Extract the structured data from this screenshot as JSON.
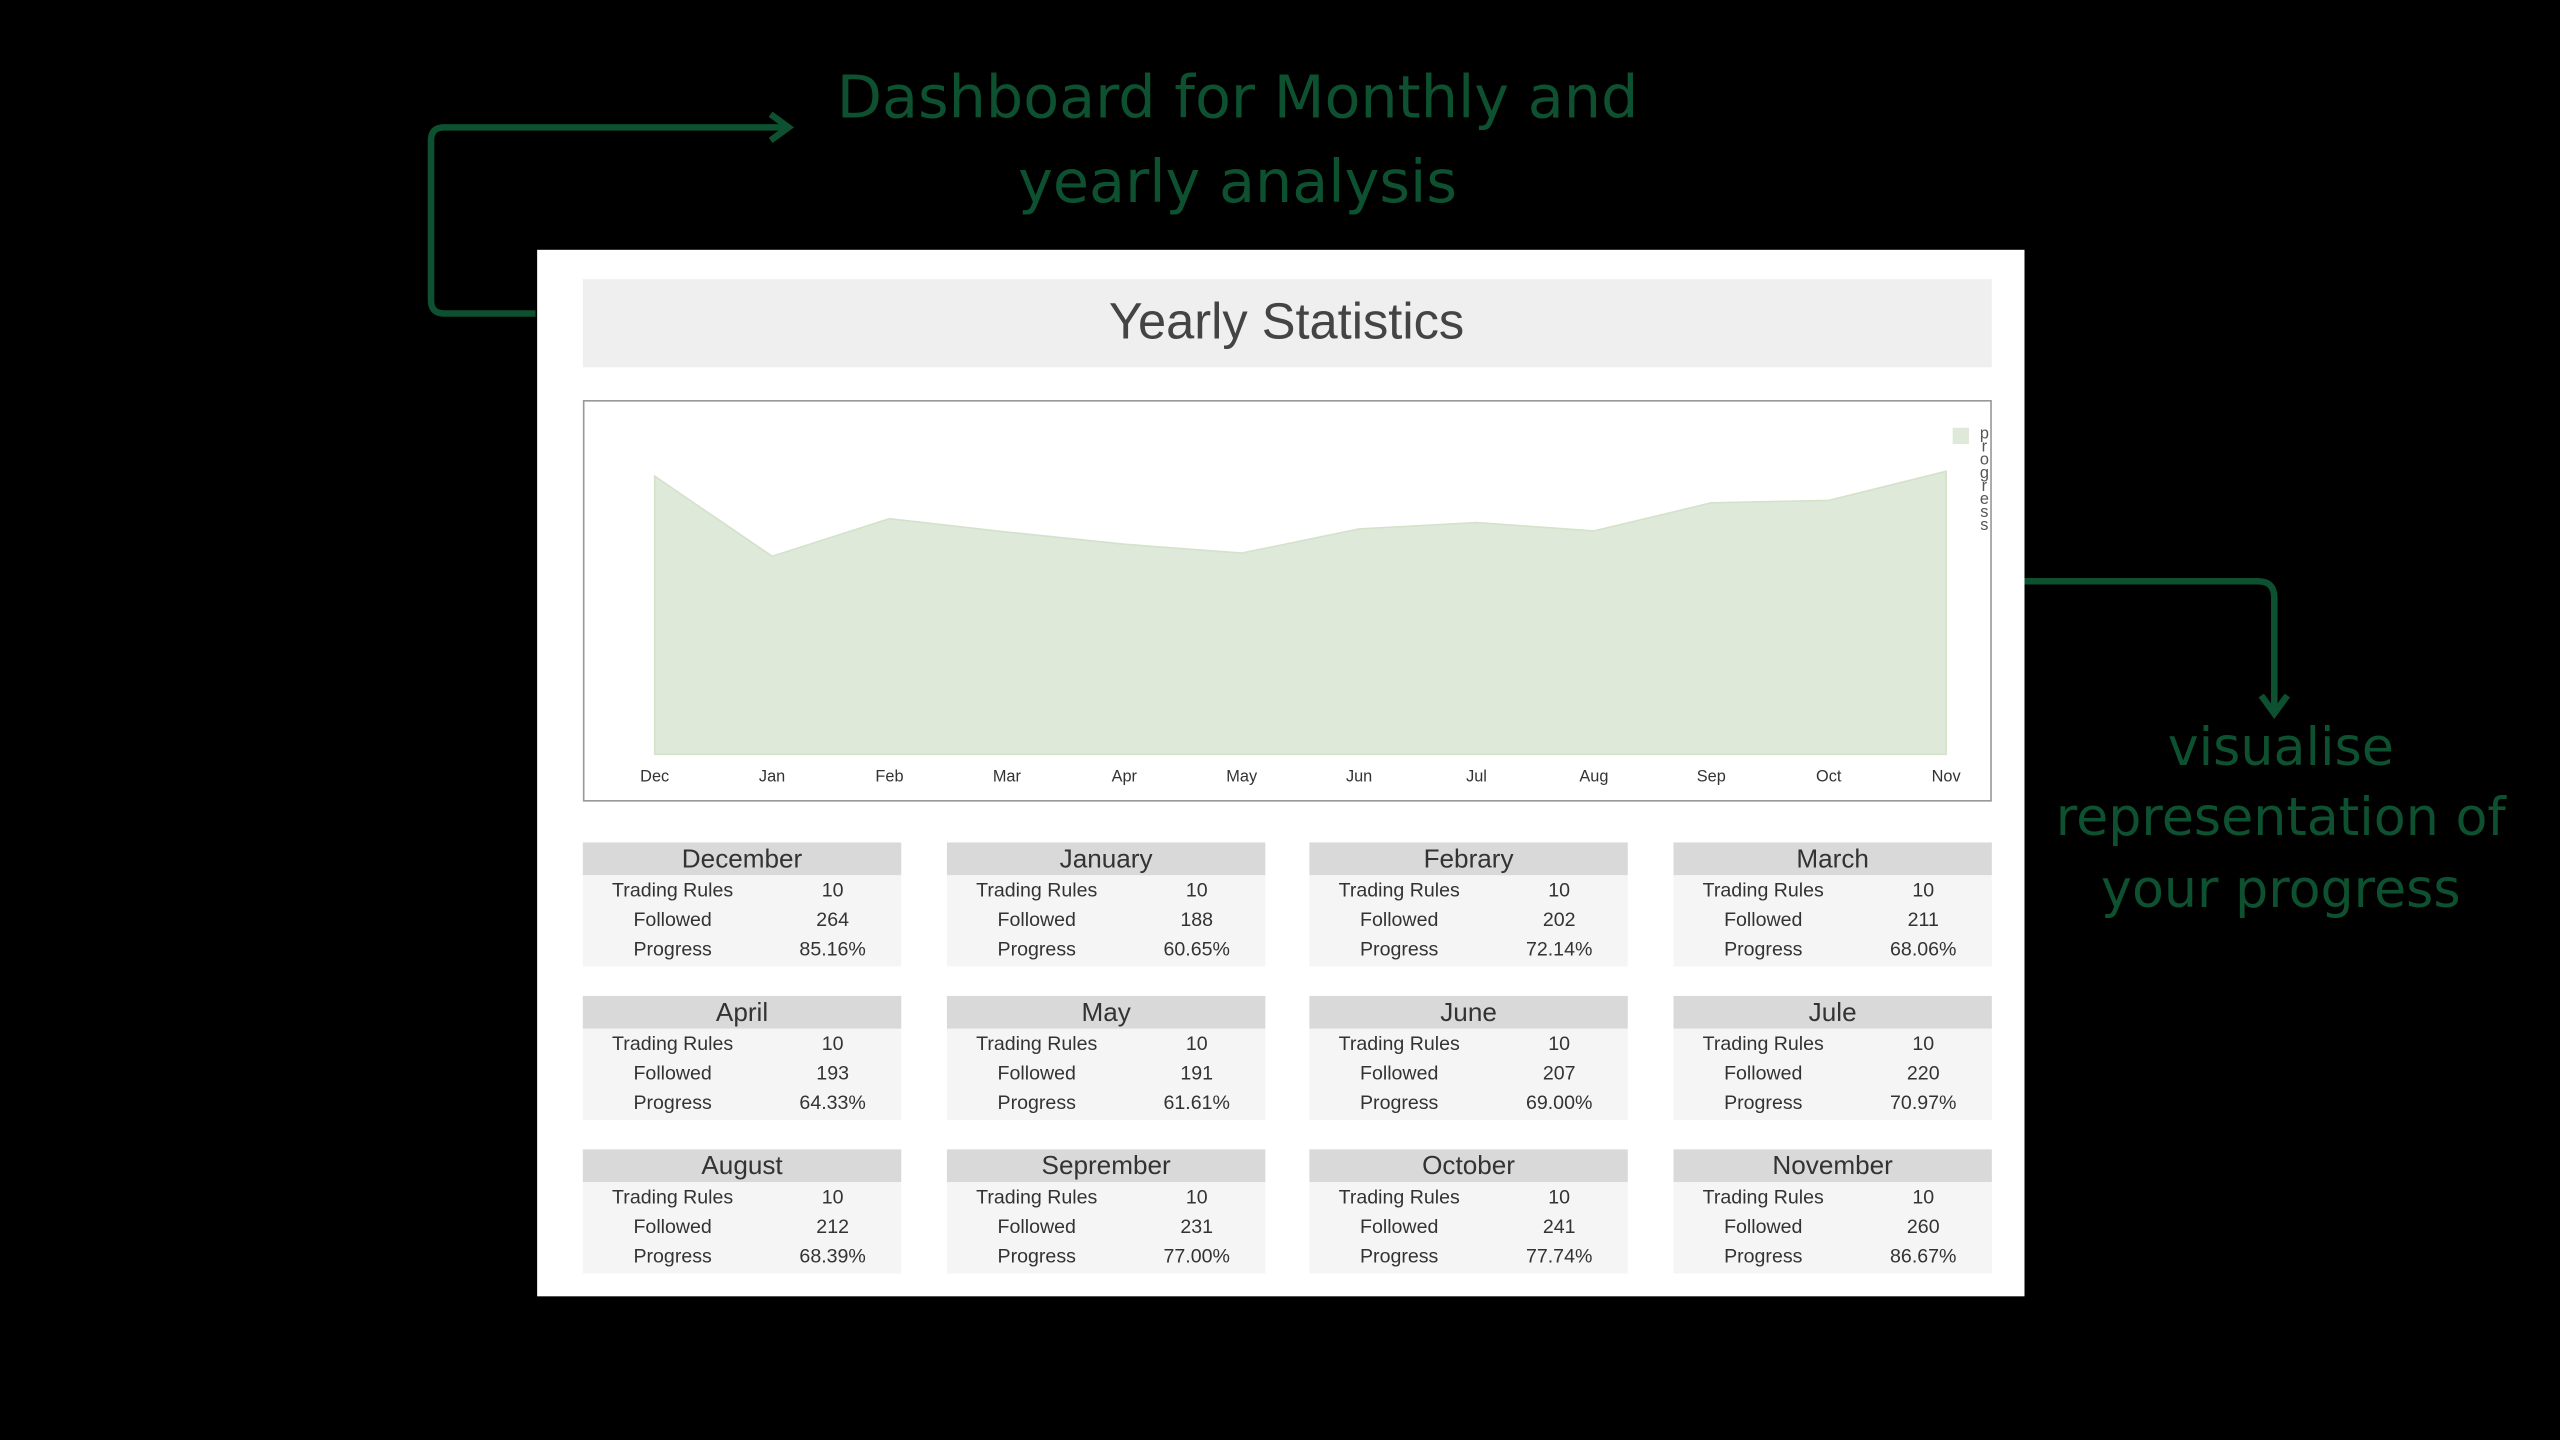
{
  "annotations": {
    "top": [
      "Dashboard for Monthly and",
      "yearly analysis"
    ],
    "right": [
      "visualise",
      "representation of",
      "your progress"
    ]
  },
  "header": {
    "title": "Yearly Statistics"
  },
  "chart_data": {
    "type": "area",
    "categories": [
      "Dec",
      "Jan",
      "Feb",
      "Mar",
      "Apr",
      "May",
      "Jun",
      "Jul",
      "Aug",
      "Sep",
      "Oct",
      "Nov"
    ],
    "series": [
      {
        "name": "progress",
        "color": "#dfe9d9",
        "values": [
          85.16,
          60.65,
          72.14,
          68.06,
          64.33,
          61.61,
          69.0,
          70.97,
          68.39,
          77.0,
          77.74,
          86.67
        ]
      }
    ],
    "ylim": [
      0,
      100
    ],
    "legend": "top-right"
  },
  "cards": [
    {
      "month": "December",
      "rows": [
        [
          "Trading Rules",
          10
        ],
        [
          "Followed",
          264
        ],
        [
          "Progress",
          "85.16%"
        ]
      ]
    },
    {
      "month": "January",
      "rows": [
        [
          "Trading Rules",
          10
        ],
        [
          "Followed",
          188
        ],
        [
          "Progress",
          "60.65%"
        ]
      ]
    },
    {
      "month": "Febrary",
      "rows": [
        [
          "Trading Rules",
          10
        ],
        [
          "Followed",
          202
        ],
        [
          "Progress",
          "72.14%"
        ]
      ]
    },
    {
      "month": "March",
      "rows": [
        [
          "Trading Rules",
          10
        ],
        [
          "Followed",
          211
        ],
        [
          "Progress",
          "68.06%"
        ]
      ]
    },
    {
      "month": "April",
      "rows": [
        [
          "Trading Rules",
          10
        ],
        [
          "Followed",
          193
        ],
        [
          "Progress",
          "64.33%"
        ]
      ]
    },
    {
      "month": "May",
      "rows": [
        [
          "Trading Rules",
          10
        ],
        [
          "Followed",
          191
        ],
        [
          "Progress",
          "61.61%"
        ]
      ]
    },
    {
      "month": "June",
      "rows": [
        [
          "Trading Rules",
          10
        ],
        [
          "Followed",
          207
        ],
        [
          "Progress",
          "69.00%"
        ]
      ]
    },
    {
      "month": "Jule",
      "rows": [
        [
          "Trading Rules",
          10
        ],
        [
          "Followed",
          220
        ],
        [
          "Progress",
          "70.97%"
        ]
      ]
    },
    {
      "month": "August",
      "rows": [
        [
          "Trading Rules",
          10
        ],
        [
          "Followed",
          212
        ],
        [
          "Progress",
          "68.39%"
        ]
      ]
    },
    {
      "month": "Seprember",
      "rows": [
        [
          "Trading Rules",
          10
        ],
        [
          "Followed",
          231
        ],
        [
          "Progress",
          "77.00%"
        ]
      ]
    },
    {
      "month": "October",
      "rows": [
        [
          "Trading Rules",
          10
        ],
        [
          "Followed",
          241
        ],
        [
          "Progress",
          "77.74%"
        ]
      ]
    },
    {
      "month": "November",
      "rows": [
        [
          "Trading Rules",
          10
        ],
        [
          "Followed",
          260
        ],
        [
          "Progress",
          "86.67%"
        ]
      ]
    }
  ]
}
